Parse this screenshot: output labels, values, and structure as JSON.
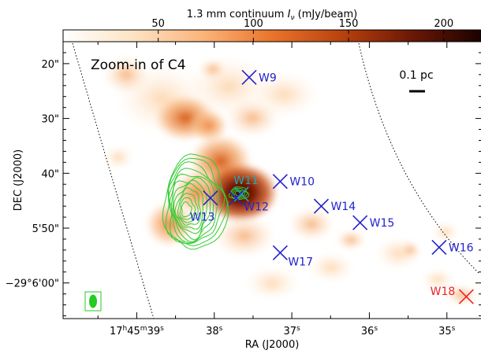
{
  "chart_data": {
    "type": "heatmap",
    "colorbar": {
      "label": "1.3 mm continuum Iν (mJy/beam)",
      "label_main": "1.3 mm continuum",
      "label_sym": "I",
      "label_sub": "ν",
      "label_unit": " (mJy/beam)",
      "ticks": [
        "50",
        "100",
        "150",
        "200"
      ],
      "tick_values": [
        50,
        100,
        150,
        200
      ],
      "range": [
        0,
        220
      ],
      "colormap": [
        "#ffffff",
        "#fde3c4",
        "#fbb47a",
        "#e9742a",
        "#b8410e",
        "#6b1805",
        "#1a0200"
      ]
    },
    "panel_label": "Zoom-in of C4",
    "scale_bar": "0.1 pc",
    "x_axis": {
      "label": "RA (J2000)",
      "range_s": [
        39.95,
        34.55
      ],
      "ticks": [
        {
          "value": 39,
          "label": "17h45m39s"
        },
        {
          "value": 38,
          "label": "38s"
        },
        {
          "value": 37,
          "label": "37s"
        },
        {
          "value": 36,
          "label": "36s"
        },
        {
          "value": 35,
          "label": "35s"
        }
      ]
    },
    "y_axis": {
      "label": "DEC (J2000)",
      "range_arcsec": [
        -66.5,
        -16.0
      ],
      "ticks": [
        {
          "value": -20,
          "label": "20\""
        },
        {
          "value": -30,
          "label": "30\""
        },
        {
          "value": -40,
          "label": "40\""
        },
        {
          "value": -50,
          "label": "5'50\""
        },
        {
          "value": -60,
          "label": "−29°6'00\""
        }
      ]
    },
    "sources": [
      {
        "name": "W9",
        "ra_s": 37.55,
        "dec_arcsec": -22.5,
        "color": "#2222cc",
        "label_side": "right"
      },
      {
        "name": "W10",
        "ra_s": 37.15,
        "dec_arcsec": -41.5,
        "color": "#2222cc",
        "label_side": "right"
      },
      {
        "name": "W11",
        "ra_s": 37.65,
        "dec_arcsec": -43.8,
        "color": "#22aaaa",
        "label_side": "above"
      },
      {
        "name": "W12",
        "ra_s": 37.72,
        "dec_arcsec": -44.5,
        "color": "#2222cc",
        "label_side": "right-below"
      },
      {
        "name": "W13",
        "ra_s": 38.05,
        "dec_arcsec": -44.5,
        "color": "#2222cc",
        "label_side": "left-below"
      },
      {
        "name": "W14",
        "ra_s": 36.62,
        "dec_arcsec": -46.0,
        "color": "#2222cc",
        "label_side": "right"
      },
      {
        "name": "W15",
        "ra_s": 36.12,
        "dec_arcsec": -49.0,
        "color": "#2222cc",
        "label_side": "right"
      },
      {
        "name": "W16",
        "ra_s": 35.1,
        "dec_arcsec": -53.5,
        "color": "#2222cc",
        "label_side": "right"
      },
      {
        "name": "W17",
        "ra_s": 37.15,
        "dec_arcsec": -54.5,
        "color": "#2222cc",
        "label_side": "right-below"
      },
      {
        "name": "W18",
        "ra_s": 34.75,
        "dec_arcsec": -62.5,
        "color": "#ee2222",
        "label_side": "left"
      }
    ],
    "beam_color": "#22cc22",
    "contour_color": "#33cc33"
  }
}
